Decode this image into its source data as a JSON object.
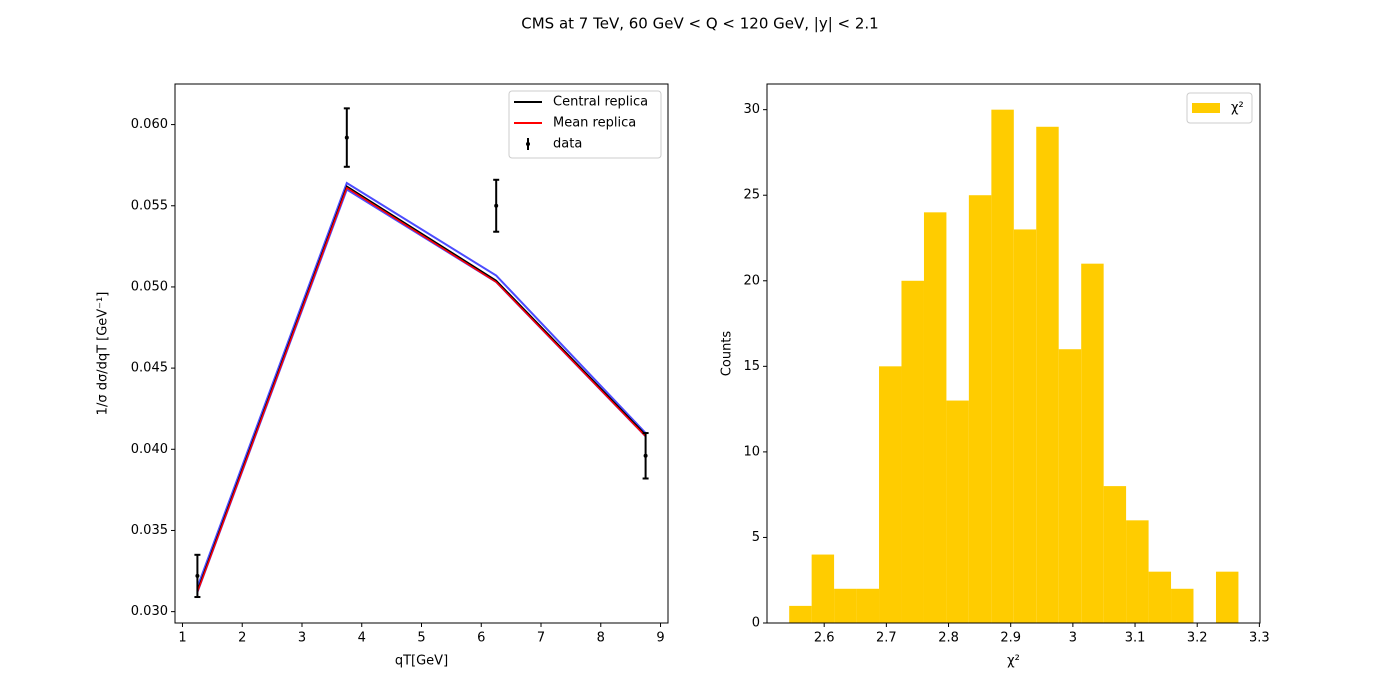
{
  "title": "CMS at 7 TeV, 60 GeV < Q < 120 GeV, |y| < 2.1",
  "chart_data": [
    {
      "type": "line",
      "xlabel": "qT[GeV]",
      "ylabel": "1/σ dσ/dqT [GeV⁻¹]",
      "x": [
        1.25,
        3.75,
        6.25,
        8.75
      ],
      "band": {
        "color": "#0000ff",
        "lower": [
          0.0312,
          0.056,
          0.0503,
          0.0408
        ],
        "upper": [
          0.0315,
          0.0564,
          0.0507,
          0.041
        ]
      },
      "series": [
        {
          "name": "Central replica",
          "color": "#000000",
          "values": [
            0.0313,
            0.0562,
            0.0504,
            0.0409
          ]
        },
        {
          "name": "Mean replica",
          "color": "#ff0000",
          "values": [
            0.0312,
            0.0561,
            0.0503,
            0.0408
          ]
        },
        {
          "name": "data",
          "color": "#000000",
          "style": "errorbar",
          "values": [
            0.0322,
            0.0592,
            0.055,
            0.0396
          ],
          "errors": [
            0.0013,
            0.0018,
            0.0016,
            0.0014
          ]
        }
      ],
      "xlim": [
        0.875,
        9.125
      ],
      "ylim": [
        0.0293,
        0.0625
      ],
      "xticks": [
        1,
        2,
        3,
        4,
        5,
        6,
        7,
        8,
        9
      ],
      "yticks": [
        {
          "value": 0.03,
          "label": "0.030"
        },
        0.035,
        {
          "value": 0.04,
          "label": "0.040"
        },
        0.045,
        {
          "value": 0.05,
          "label": "0.050"
        },
        0.055,
        {
          "value": 0.06,
          "label": "0.060"
        }
      ],
      "legend": "upper right"
    },
    {
      "type": "histogram",
      "xlabel": "χ²",
      "ylabel": "Counts",
      "name": "χ²",
      "color": "#ffcc00",
      "bins": [
        2.5437,
        2.5798,
        2.6159,
        2.6521,
        2.6882,
        2.7243,
        2.7605,
        2.7966,
        2.8327,
        2.8689,
        2.905,
        2.9411,
        2.9772,
        3.0134,
        3.0495,
        3.0856,
        3.1218,
        3.1579,
        3.194,
        3.2302,
        3.2663
      ],
      "counts": [
        1,
        4,
        2,
        2,
        15,
        20,
        24,
        13,
        25,
        30,
        23,
        29,
        16,
        21,
        8,
        6,
        3,
        2,
        0,
        3
      ],
      "xlim": [
        2.508,
        3.301
      ],
      "ylim": [
        0,
        31.5
      ],
      "xticks": [
        2.6,
        2.7,
        2.8,
        2.9,
        3.0,
        3.1,
        3.2,
        3.3
      ],
      "yticks": [
        0,
        5,
        10,
        15,
        20,
        25,
        30
      ],
      "legend": "upper right"
    }
  ]
}
